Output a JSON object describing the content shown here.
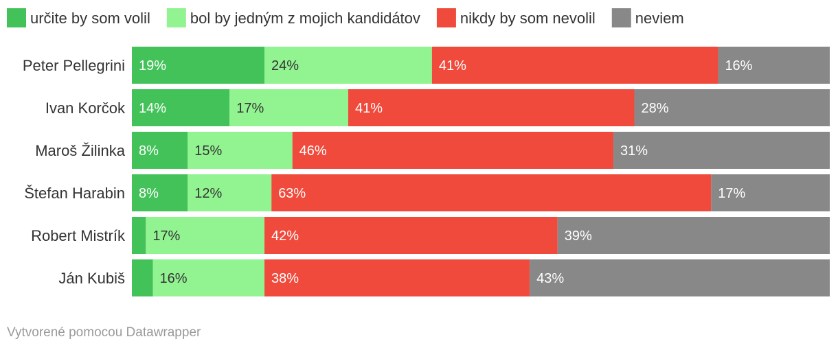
{
  "chart_data": {
    "type": "bar",
    "orientation": "horizontal",
    "stacked": true,
    "legend_position": "top-left",
    "categories": [
      "Peter Pellegrini",
      "Ivan Korčok",
      "Maroš Žilinka",
      "Štefan Harabin",
      "Robert Mistrík",
      "Ján Kubiš"
    ],
    "series": [
      {
        "name": "určite by som volil",
        "color": "#44c25a",
        "text_color": "#ffffff",
        "values": [
          19,
          14,
          8,
          8,
          2,
          3
        ],
        "labels": [
          "19%",
          "14%",
          "8%",
          "8%",
          "",
          ""
        ]
      },
      {
        "name": "bol by jedným z mojich kandidátov",
        "color": "#92f391",
        "text_color": "#333333",
        "values": [
          24,
          17,
          15,
          12,
          17,
          16
        ],
        "labels": [
          "24%",
          "17%",
          "15%",
          "12%",
          "17%",
          "16%"
        ]
      },
      {
        "name": "nikdy by som nevolil",
        "color": "#ef4a3c",
        "text_color": "#ffffff",
        "values": [
          41,
          41,
          46,
          63,
          42,
          38
        ],
        "labels": [
          "41%",
          "41%",
          "46%",
          "63%",
          "42%",
          "38%"
        ]
      },
      {
        "name": "neviem",
        "color": "#888888",
        "text_color": "#ffffff",
        "values": [
          16,
          28,
          31,
          17,
          39,
          43
        ],
        "labels": [
          "16%",
          "28%",
          "31%",
          "17%",
          "39%",
          "43%"
        ]
      }
    ],
    "xlim": [
      0,
      100
    ]
  },
  "footer": {
    "credit": "Vytvorené pomocou Datawrapper"
  }
}
